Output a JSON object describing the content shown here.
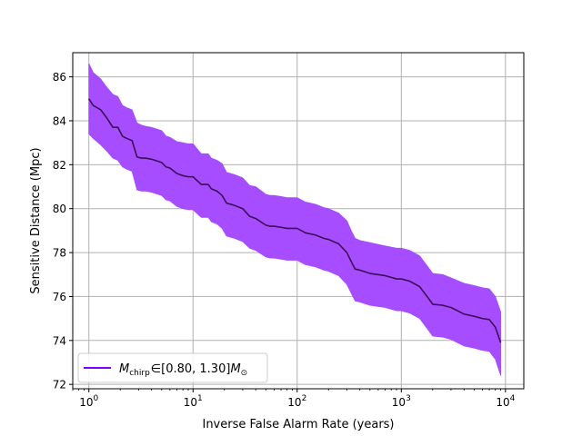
{
  "chart_data": {
    "type": "line",
    "title": "",
    "xlabel": "Inverse False Alarm Rate (years)",
    "ylabel": "Sensitive Distance (Mpc)",
    "xscale": "log",
    "xlim": [
      0.7,
      15000
    ],
    "ylim": [
      71.8,
      87.1
    ],
    "grid": true,
    "x_ticks": [
      1,
      10,
      100,
      1000,
      10000
    ],
    "x_tick_labels": [
      {
        "base": "10",
        "exp": "0"
      },
      {
        "base": "10",
        "exp": "1"
      },
      {
        "base": "10",
        "exp": "2"
      },
      {
        "base": "10",
        "exp": "3"
      },
      {
        "base": "10",
        "exp": "4"
      }
    ],
    "y_ticks": [
      72,
      74,
      76,
      78,
      80,
      82,
      84,
      86
    ],
    "y_tick_labels": [
      "72",
      "74",
      "76",
      "78",
      "80",
      "82",
      "84",
      "86"
    ],
    "legend": {
      "position": "lower-left",
      "symbol": "M",
      "subscript": "chirp",
      "relation": "∈",
      "range": "[0.80, 1.30]",
      "unit_symbol": "M",
      "unit_subscript": "⊙"
    },
    "colors": {
      "line": "#3d0d57",
      "band": "#a64dff",
      "legend_line": "#8000ff",
      "grid": "#b0b0b0"
    },
    "series": [
      {
        "x": [
          1.0,
          1.1,
          1.3,
          1.5,
          1.7,
          1.9,
          2.1,
          2.3,
          2.6,
          2.9,
          3.2,
          3.5,
          4.0,
          5.0,
          5.5,
          6.0,
          7.0,
          8.0,
          9.0,
          10.0,
          12.0,
          14.0,
          15.0,
          17.0,
          19.0,
          21.0,
          25.0,
          30.0,
          35.0,
          40.0,
          50.0,
          55.0,
          60.0,
          70.0,
          80.0,
          100.0,
          120.0,
          150.0,
          180.0,
          200.0,
          250.0,
          300.0,
          330.0,
          360.0,
          400.0,
          500.0,
          700.0,
          900.0,
          1000.0,
          1200.0,
          1500.0,
          1800.0,
          2000.0,
          2500.0,
          3000.0,
          4000.0,
          5000.0,
          6000.0,
          7000.0,
          8000.0,
          9000.0
        ],
        "y": [
          85.0,
          84.7,
          84.5,
          84.1,
          83.7,
          83.7,
          83.3,
          83.2,
          83.1,
          82.35,
          82.3,
          82.3,
          82.25,
          82.1,
          81.9,
          81.85,
          81.6,
          81.5,
          81.45,
          81.45,
          81.1,
          81.1,
          80.9,
          80.8,
          80.6,
          80.25,
          80.15,
          80.0,
          79.65,
          79.55,
          79.25,
          79.2,
          79.2,
          79.15,
          79.1,
          79.1,
          78.9,
          78.8,
          78.65,
          78.6,
          78.4,
          78.0,
          77.6,
          77.25,
          77.2,
          77.05,
          76.95,
          76.8,
          76.8,
          76.7,
          76.45,
          75.95,
          75.65,
          75.6,
          75.5,
          75.2,
          75.1,
          75.0,
          74.95,
          74.6,
          73.9
        ]
      }
    ],
    "band": {
      "x": [
        1.0,
        1.1,
        1.3,
        1.5,
        1.7,
        1.9,
        2.1,
        2.3,
        2.6,
        2.9,
        3.2,
        3.5,
        4.0,
        5.0,
        5.5,
        6.0,
        7.0,
        8.0,
        9.0,
        10.0,
        12.0,
        14.0,
        15.0,
        17.0,
        19.0,
        21.0,
        25.0,
        30.0,
        35.0,
        40.0,
        50.0,
        55.0,
        60.0,
        70.0,
        80.0,
        100.0,
        120.0,
        150.0,
        180.0,
        200.0,
        250.0,
        300.0,
        330.0,
        360.0,
        400.0,
        500.0,
        700.0,
        900.0,
        1000.0,
        1200.0,
        1500.0,
        1800.0,
        2000.0,
        2500.0,
        3000.0,
        4000.0,
        5000.0,
        6000.0,
        7000.0,
        8000.0,
        9000.0
      ],
      "upper": [
        86.6,
        86.2,
        85.9,
        85.5,
        85.2,
        85.1,
        84.7,
        84.6,
        84.5,
        83.9,
        83.8,
        83.75,
        83.7,
        83.55,
        83.3,
        83.25,
        83.05,
        83.0,
        82.95,
        82.95,
        82.5,
        82.5,
        82.3,
        82.2,
        82.05,
        81.65,
        81.55,
        81.4,
        81.05,
        81.0,
        80.65,
        80.6,
        80.6,
        80.55,
        80.5,
        80.5,
        80.3,
        80.2,
        80.05,
        80.0,
        79.8,
        79.45,
        79.0,
        78.65,
        78.55,
        78.45,
        78.3,
        78.2,
        78.2,
        78.1,
        77.85,
        77.35,
        77.05,
        77.0,
        76.85,
        76.6,
        76.5,
        76.4,
        76.35,
        76.0,
        75.3
      ],
      "lower": [
        83.4,
        83.2,
        82.9,
        82.6,
        82.3,
        82.2,
        81.9,
        81.8,
        81.7,
        80.85,
        80.8,
        80.8,
        80.75,
        80.6,
        80.4,
        80.35,
        80.1,
        80.0,
        79.95,
        79.95,
        79.6,
        79.6,
        79.4,
        79.3,
        79.1,
        78.75,
        78.65,
        78.5,
        78.2,
        78.1,
        77.8,
        77.75,
        77.75,
        77.7,
        77.65,
        77.65,
        77.45,
        77.35,
        77.2,
        77.15,
        76.95,
        76.55,
        76.15,
        75.8,
        75.75,
        75.6,
        75.5,
        75.35,
        75.35,
        75.25,
        75.0,
        74.5,
        74.2,
        74.15,
        74.05,
        73.75,
        73.65,
        73.55,
        73.5,
        73.15,
        72.4
      ]
    }
  }
}
